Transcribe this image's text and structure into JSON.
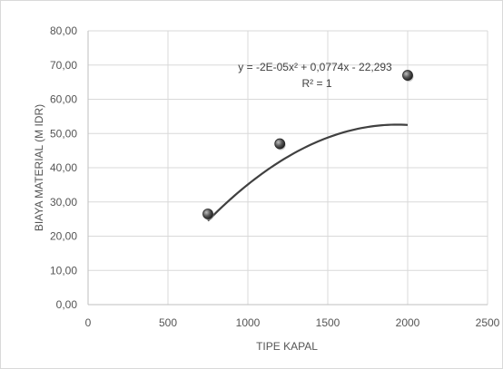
{
  "chart_data": {
    "type": "scatter",
    "title": "",
    "xlabel": "TIPE KAPAL",
    "ylabel": "BIAYA MATERIAL (M IDR)",
    "xlim": [
      0,
      2500
    ],
    "ylim": [
      0,
      80
    ],
    "x_ticks": [
      0,
      500,
      1000,
      1500,
      2000,
      2500
    ],
    "y_ticks": [
      0,
      10,
      20,
      30,
      40,
      50,
      60,
      70,
      80
    ],
    "x_tick_labels": [
      "0",
      "500",
      "1000",
      "1500",
      "2000",
      "2500"
    ],
    "y_tick_labels": [
      "0,00",
      "10,00",
      "20,00",
      "30,00",
      "40,00",
      "50,00",
      "60,00",
      "70,00",
      "80,00"
    ],
    "grid": true,
    "legend": "none",
    "series": [
      {
        "x": [
          750,
          1200,
          2000
        ],
        "y": [
          26.5,
          47,
          67
        ],
        "color": "#404040",
        "trendline": {
          "type": "polynomial",
          "order": 2,
          "coefficients": [
            -2e-05,
            0.0774,
            -22.293
          ],
          "color": "#404040"
        }
      }
    ],
    "annotations": [
      "y = -2E-05x² + 0,0774x - 22,293",
      "R² = 1"
    ]
  }
}
